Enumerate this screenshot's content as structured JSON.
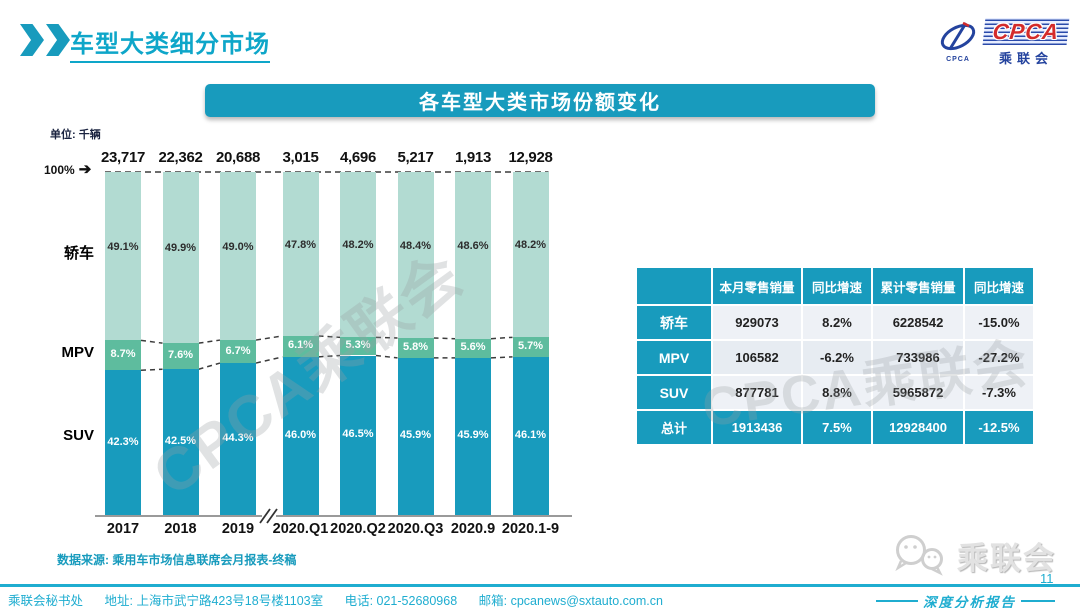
{
  "page": {
    "title": "车型大类细分市场",
    "chart_banner": "各车型大类市场份额变化",
    "unit_label": "单位: 千辆",
    "y_top_label": "100%",
    "source_note": "数据来源: 乘用车市场信息联席会月报表-终稿",
    "watermark": "CPCA乘联会"
  },
  "colors": {
    "accent": "#189bbd",
    "accent_bright": "#0ea6c9",
    "footer_teal": "#1fadd0",
    "dashed_line": "#3c3c3c",
    "axis_line": "#9a9a9a"
  },
  "logo": {
    "text": "CPCA",
    "subtext": "乘联会",
    "icon_caption": "CPCA"
  },
  "chart_data": {
    "type": "bar",
    "stacked": true,
    "percent_stack": true,
    "title": "各车型大类市场份额变化",
    "unit": "千辆",
    "y_axis_top_label": "100%",
    "axis_break_after_index": 2,
    "categories": [
      "2017",
      "2018",
      "2019",
      "2020.Q1",
      "2020.Q2",
      "2020.Q3",
      "2020.9",
      "2020.1-9"
    ],
    "totals": [
      "23,717",
      "22,362",
      "20,688",
      "3,015",
      "4,696",
      "5,217",
      "1,913",
      "12,928"
    ],
    "series": [
      {
        "name": "轿车",
        "values": [
          49.1,
          49.9,
          49.0,
          47.8,
          48.2,
          48.4,
          48.6,
          48.2
        ],
        "color": "#b2dbd2",
        "label_color": "#2d2d2d"
      },
      {
        "name": "MPV",
        "values": [
          8.7,
          7.6,
          6.7,
          6.1,
          5.3,
          5.8,
          5.6,
          5.7
        ],
        "color": "#5ebc9e",
        "label_color": "#ffffff"
      },
      {
        "name": "SUV",
        "values": [
          42.3,
          42.5,
          44.3,
          46.0,
          46.5,
          45.9,
          45.9,
          46.1
        ],
        "color": "#189bbd",
        "label_color": "#ffffff"
      }
    ]
  },
  "table": {
    "headers": [
      "",
      "本月零售销量",
      "同比增速",
      "累计零售销量",
      "同比增速"
    ],
    "rows": [
      {
        "label": "轿车",
        "cells": [
          "929073",
          "8.2%",
          "6228542",
          "-15.0%"
        ],
        "is_total": false
      },
      {
        "label": "MPV",
        "cells": [
          "106582",
          "-6.2%",
          "733986",
          "-27.2%"
        ],
        "is_total": false
      },
      {
        "label": "SUV",
        "cells": [
          "877781",
          "8.8%",
          "5965872",
          "-7.3%"
        ],
        "is_total": false
      },
      {
        "label": "总计",
        "cells": [
          "1913436",
          "7.5%",
          "12928400",
          "-12.5%"
        ],
        "is_total": true
      }
    ]
  },
  "footer": {
    "secretariat": "乘联会秘书处",
    "address_label": "地址: ",
    "address": "上海市武宁路423号18号楼1103室",
    "phone_label": "电话: ",
    "phone": "021-52680968",
    "email_label": "邮箱: ",
    "email": "cpcanews@sxtauto.com.cn",
    "page_number": "11",
    "report_label": "深度分析报告",
    "wechat_label": "乘联会"
  }
}
